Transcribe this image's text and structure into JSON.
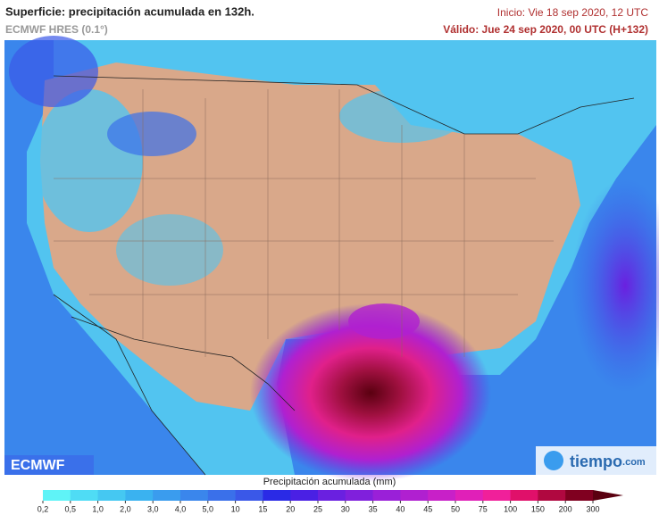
{
  "header": {
    "title": "Superficie: precipitación acumulada en 132h.",
    "model": "ECMWF HRES (0.1°)",
    "init": "Inicio: Vie 18 sep 2020, 12 UTC",
    "valid": "Válido: Jue 24 sep 2020, 00 UTC (H+132)"
  },
  "logos": {
    "left": "ECMWF",
    "right": "tiempo",
    "right_suffix": ".com"
  },
  "legend": {
    "title": "Precipitación acumulada (mm)",
    "ticks": [
      "0,2",
      "0,5",
      "1,0",
      "2,0",
      "3,0",
      "4,0",
      "5,0",
      "10",
      "15",
      "20",
      "25",
      "30",
      "35",
      "40",
      "45",
      "50",
      "75",
      "100",
      "150",
      "200",
      "300"
    ],
    "colors": [
      "#5ff3f7",
      "#4fdcf5",
      "#45c8f2",
      "#3ab2f0",
      "#3a9cee",
      "#3a86ec",
      "#3a70ea",
      "#3a58e8",
      "#2a2ae6",
      "#4a20e4",
      "#6a20e0",
      "#8020dc",
      "#9a20d8",
      "#b020d0",
      "#c820c8",
      "#e020b8",
      "#f0209a",
      "#e0106a",
      "#b00840",
      "#800020"
    ],
    "arrow_color": "#5a0010"
  }
}
